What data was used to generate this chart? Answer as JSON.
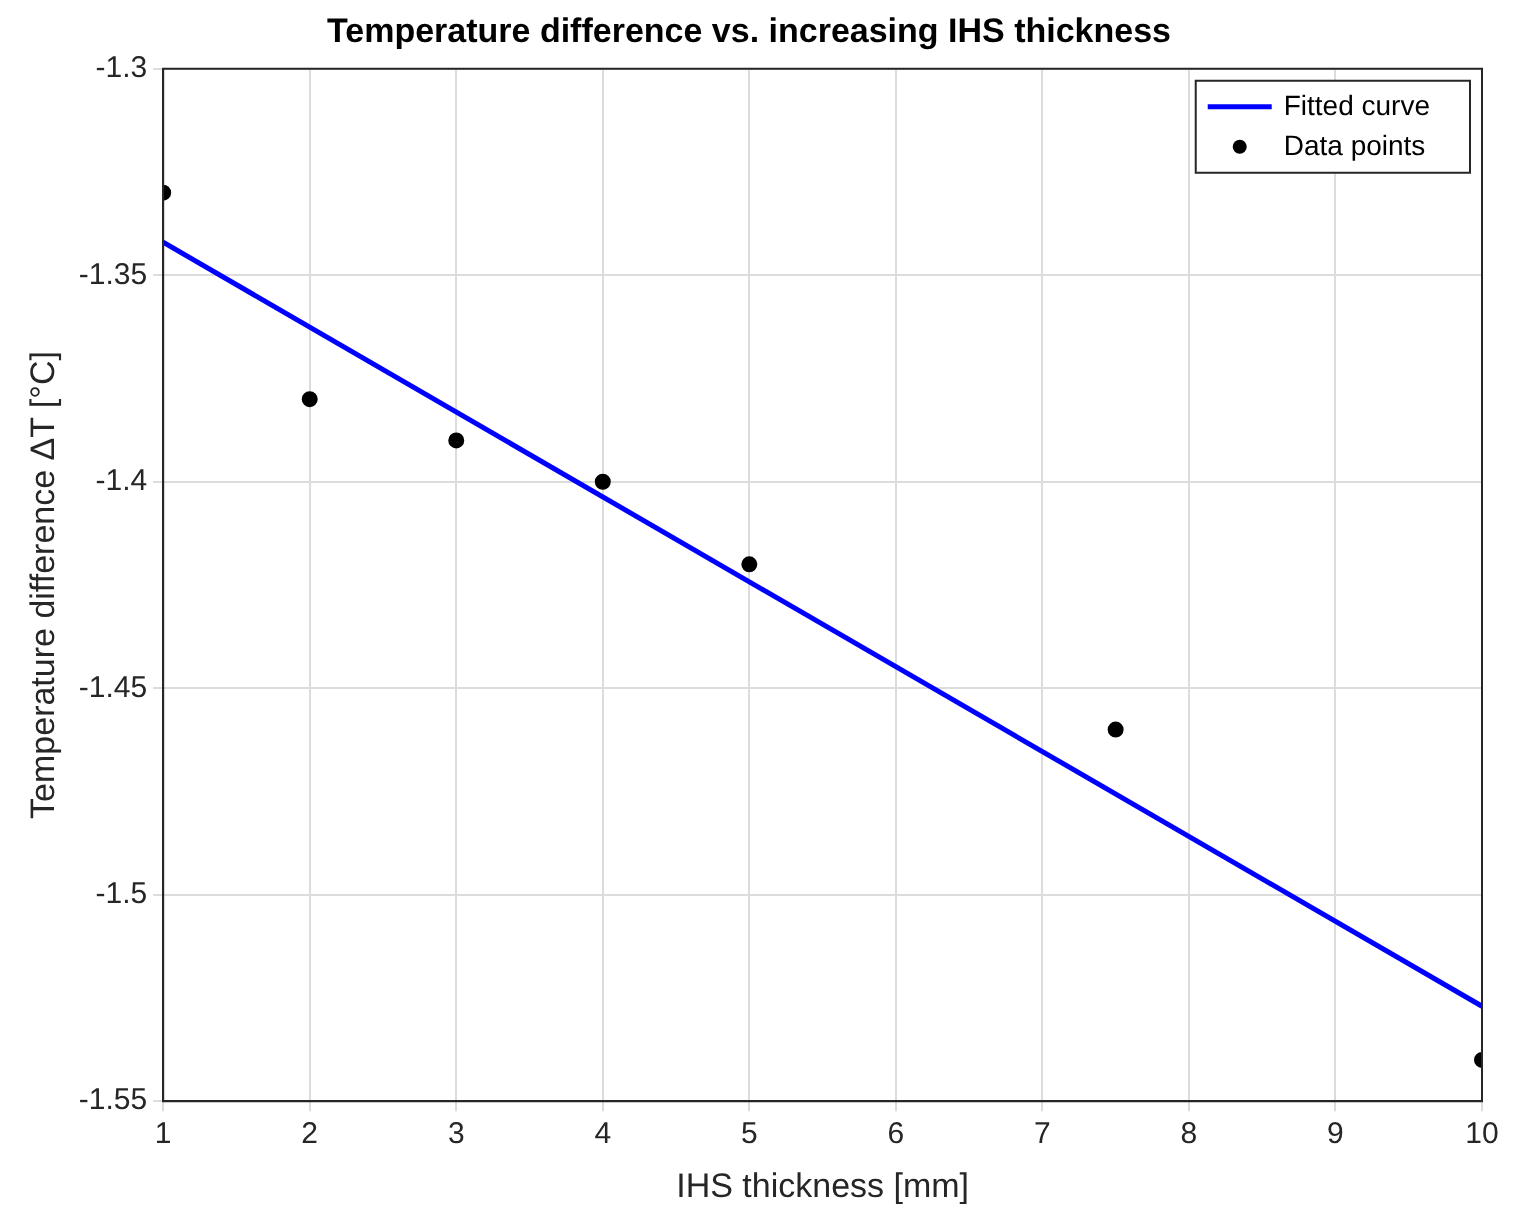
{
  "chart_data": {
    "type": "scatter",
    "title": "Temperature difference vs. increasing IHS thickness",
    "xlabel": "IHS thickness [mm]",
    "ylabel": "Temperature difference ΔT [°C]",
    "series": [
      {
        "name": "Fitted curve",
        "type": "line",
        "color": "#0000ff",
        "x": [
          1,
          10
        ],
        "values": [
          -1.342,
          -1.527
        ],
        "marker": "none",
        "line_style": "solid"
      },
      {
        "name": "Data points",
        "color": "#000000",
        "x": [
          1,
          2,
          3,
          4,
          5,
          7.5,
          10
        ],
        "values": [
          -1.33,
          -1.38,
          -1.39,
          -1.4,
          -1.42,
          -1.46,
          -1.54
        ],
        "marker": "circle"
      }
    ],
    "xlim": [
      1,
      10
    ],
    "xticks": [
      1,
      2,
      3,
      4,
      5,
      6,
      7,
      8,
      9,
      10
    ],
    "ylim": [
      -1.55,
      -1.3
    ],
    "yticks": [
      -1.55,
      -1.5,
      -1.45,
      -1.4,
      -1.35,
      -1.3
    ],
    "grid": true,
    "legend": "top right"
  }
}
